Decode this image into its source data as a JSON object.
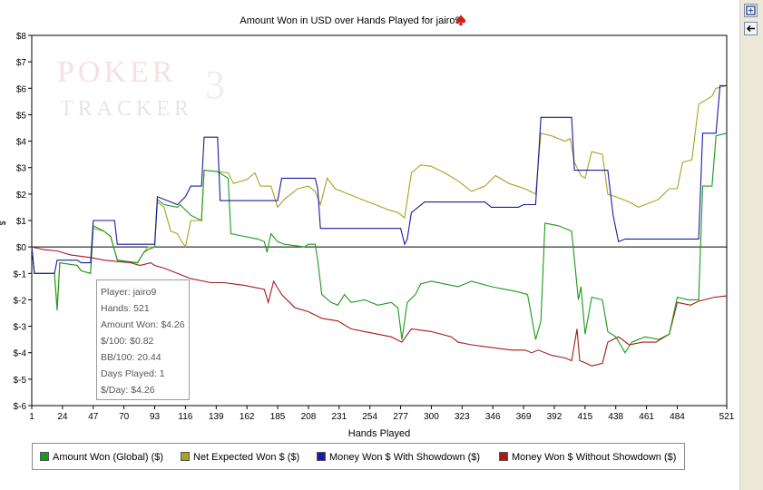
{
  "chart_data": {
    "type": "line",
    "title": "Amount Won in USD over Hands Played for jairo9",
    "xlabel": "Hands Played",
    "ylabel": "$",
    "xlim": [
      1,
      521
    ],
    "ylim": [
      -6,
      8
    ],
    "x_ticks": [
      1,
      24,
      47,
      70,
      93,
      116,
      139,
      162,
      185,
      208,
      231,
      254,
      277,
      300,
      323,
      346,
      369,
      392,
      415,
      438,
      461,
      484,
      521
    ],
    "y_ticks": [
      {
        "v": 8,
        "label": "$8"
      },
      {
        "v": 7,
        "label": "$7"
      },
      {
        "v": 6,
        "label": "$6"
      },
      {
        "v": 5,
        "label": "$5"
      },
      {
        "v": 4,
        "label": "$4"
      },
      {
        "v": 3,
        "label": "$3"
      },
      {
        "v": 2,
        "label": "$2"
      },
      {
        "v": 1,
        "label": "$1"
      },
      {
        "v": 0,
        "label": "$0"
      },
      {
        "v": -1,
        "label": "$-1"
      },
      {
        "v": -2,
        "label": "$-2"
      },
      {
        "v": -3,
        "label": "$-3"
      },
      {
        "v": -4,
        "label": "$-4"
      },
      {
        "v": -5,
        "label": "$-5"
      },
      {
        "v": -6,
        "label": "$-6"
      }
    ],
    "grid": false,
    "zero_line": true,
    "legend_position": "bottom",
    "series": [
      {
        "name": "Amount Won (Global) ($)",
        "color": "#1a9a1a",
        "points": [
          [
            1,
            0
          ],
          [
            3,
            -1
          ],
          [
            18,
            -1
          ],
          [
            20,
            -2.4
          ],
          [
            22,
            -0.6
          ],
          [
            35,
            -0.7
          ],
          [
            38,
            -0.9
          ],
          [
            45,
            -1
          ],
          [
            47,
            0.8
          ],
          [
            55,
            0.6
          ],
          [
            60,
            0.4
          ],
          [
            65,
            -0.5
          ],
          [
            80,
            -0.6
          ],
          [
            85,
            -0.2
          ],
          [
            88,
            -0.1
          ],
          [
            93,
            0
          ],
          [
            95,
            1.8
          ],
          [
            100,
            1.6
          ],
          [
            110,
            1.5
          ],
          [
            112,
            1.6
          ],
          [
            120,
            1.2
          ],
          [
            128,
            1
          ],
          [
            130,
            2.9
          ],
          [
            140,
            2.85
          ],
          [
            148,
            2.6
          ],
          [
            150,
            0.5
          ],
          [
            160,
            0.4
          ],
          [
            170,
            0.3
          ],
          [
            175,
            0.2
          ],
          [
            177,
            -0.2
          ],
          [
            180,
            0.5
          ],
          [
            185,
            0.2
          ],
          [
            190,
            0.1
          ],
          [
            205,
            0
          ],
          [
            208,
            0.1
          ],
          [
            213,
            0.1
          ],
          [
            215,
            -0.5
          ],
          [
            218,
            -1.8
          ],
          [
            225,
            -2.1
          ],
          [
            230,
            -2.2
          ],
          [
            235,
            -1.8
          ],
          [
            240,
            -2.1
          ],
          [
            250,
            -2
          ],
          [
            260,
            -2.2
          ],
          [
            270,
            -2.1
          ],
          [
            275,
            -2.3
          ],
          [
            278,
            -3.5
          ],
          [
            282,
            -2.1
          ],
          [
            288,
            -1.8
          ],
          [
            292,
            -1.4
          ],
          [
            300,
            -1.3
          ],
          [
            310,
            -1.4
          ],
          [
            320,
            -1.5
          ],
          [
            330,
            -1.3
          ],
          [
            345,
            -1.5
          ],
          [
            355,
            -1.6
          ],
          [
            365,
            -1.7
          ],
          [
            372,
            -1.8
          ],
          [
            378,
            -3.5
          ],
          [
            382,
            -2.8
          ],
          [
            385,
            0.9
          ],
          [
            395,
            0.8
          ],
          [
            405,
            0.6
          ],
          [
            410,
            -2
          ],
          [
            412,
            -1.5
          ],
          [
            415,
            -3.3
          ],
          [
            420,
            -1.9
          ],
          [
            428,
            -2
          ],
          [
            432,
            -3.2
          ],
          [
            438,
            -3.4
          ],
          [
            445,
            -4
          ],
          [
            450,
            -3.6
          ],
          [
            460,
            -3.4
          ],
          [
            470,
            -3.5
          ],
          [
            478,
            -3.3
          ],
          [
            484,
            -1.9
          ],
          [
            492,
            -2
          ],
          [
            500,
            -2
          ],
          [
            503,
            2.3
          ],
          [
            510,
            2.3
          ],
          [
            513,
            4.2
          ],
          [
            521,
            4.3
          ]
        ]
      },
      {
        "name": "Net Expected Won $ ($)",
        "color": "#a8a222",
        "points": [
          [
            1,
            0
          ],
          [
            3,
            -1
          ],
          [
            18,
            -1
          ],
          [
            20,
            -2.3
          ],
          [
            22,
            -0.6
          ],
          [
            35,
            -0.7
          ],
          [
            38,
            -0.9
          ],
          [
            45,
            -1
          ],
          [
            47,
            0.7
          ],
          [
            55,
            0.6
          ],
          [
            60,
            0.4
          ],
          [
            65,
            -0.5
          ],
          [
            80,
            -0.6
          ],
          [
            85,
            -0.2
          ],
          [
            88,
            0
          ],
          [
            93,
            0
          ],
          [
            95,
            1.7
          ],
          [
            100,
            1.5
          ],
          [
            105,
            0.6
          ],
          [
            110,
            0.5
          ],
          [
            112,
            0.3
          ],
          [
            116,
            0
          ],
          [
            120,
            1
          ],
          [
            128,
            1
          ],
          [
            130,
            2.9
          ],
          [
            140,
            2.85
          ],
          [
            148,
            2.8
          ],
          [
            152,
            2.4
          ],
          [
            162,
            2.55
          ],
          [
            168,
            2.8
          ],
          [
            172,
            2.3
          ],
          [
            180,
            2.3
          ],
          [
            185,
            1.5
          ],
          [
            190,
            1.8
          ],
          [
            200,
            2.2
          ],
          [
            208,
            2.3
          ],
          [
            213,
            2.1
          ],
          [
            217,
            1.6
          ],
          [
            222,
            2.6
          ],
          [
            228,
            2.2
          ],
          [
            238,
            2.0
          ],
          [
            248,
            1.8
          ],
          [
            258,
            1.6
          ],
          [
            268,
            1.4
          ],
          [
            275,
            1.3
          ],
          [
            280,
            1.1
          ],
          [
            285,
            2.8
          ],
          [
            292,
            3.1
          ],
          [
            300,
            3.05
          ],
          [
            310,
            2.8
          ],
          [
            320,
            2.5
          ],
          [
            330,
            2.1
          ],
          [
            340,
            2.3
          ],
          [
            348,
            2.7
          ],
          [
            358,
            2.4
          ],
          [
            370,
            2.2
          ],
          [
            378,
            2.0
          ],
          [
            382,
            4.3
          ],
          [
            390,
            4.2
          ],
          [
            400,
            4.0
          ],
          [
            404,
            4.1
          ],
          [
            407,
            3.2
          ],
          [
            410,
            2.9
          ],
          [
            412,
            2.7
          ],
          [
            415,
            2.6
          ],
          [
            420,
            3.6
          ],
          [
            428,
            3.5
          ],
          [
            432,
            2.0
          ],
          [
            438,
            1.9
          ],
          [
            448,
            1.7
          ],
          [
            455,
            1.5
          ],
          [
            460,
            1.6
          ],
          [
            470,
            1.8
          ],
          [
            478,
            2.2
          ],
          [
            484,
            2.2
          ],
          [
            488,
            3.2
          ],
          [
            495,
            3.3
          ],
          [
            500,
            5.4
          ],
          [
            510,
            5.7
          ],
          [
            513,
            6.0
          ],
          [
            521,
            6.1
          ]
        ]
      },
      {
        "name": "Money Won $ With Showdown ($)",
        "color": "#1a1aa8",
        "points": [
          [
            1,
            0
          ],
          [
            3,
            -1
          ],
          [
            18,
            -1
          ],
          [
            20,
            -0.5
          ],
          [
            35,
            -0.5
          ],
          [
            38,
            -0.6
          ],
          [
            45,
            -0.6
          ],
          [
            47,
            1.0
          ],
          [
            63,
            1.0
          ],
          [
            65,
            0.1
          ],
          [
            88,
            0.1
          ],
          [
            93,
            0.1
          ],
          [
            95,
            1.9
          ],
          [
            110,
            1.6
          ],
          [
            116,
            1.9
          ],
          [
            120,
            2.3
          ],
          [
            128,
            2.3
          ],
          [
            130,
            4.15
          ],
          [
            140,
            4.15
          ],
          [
            142,
            1.75
          ],
          [
            185,
            1.75
          ],
          [
            188,
            2.6
          ],
          [
            213,
            2.6
          ],
          [
            215,
            2.2
          ],
          [
            217,
            0.7
          ],
          [
            277,
            0.7
          ],
          [
            280,
            0.1
          ],
          [
            282,
            0.3
          ],
          [
            285,
            1.3
          ],
          [
            295,
            1.7
          ],
          [
            340,
            1.7
          ],
          [
            345,
            1.5
          ],
          [
            365,
            1.5
          ],
          [
            369,
            1.6
          ],
          [
            378,
            1.6
          ],
          [
            382,
            4.9
          ],
          [
            392,
            4.9
          ],
          [
            400,
            4.9
          ],
          [
            405,
            4.9
          ],
          [
            407,
            2.9
          ],
          [
            432,
            2.9
          ],
          [
            436,
            1.2
          ],
          [
            440,
            0.2
          ],
          [
            445,
            0.3
          ],
          [
            500,
            0.3
          ],
          [
            503,
            4.3
          ],
          [
            513,
            4.3
          ],
          [
            516,
            6.1
          ],
          [
            521,
            6.1
          ]
        ]
      },
      {
        "name": "Money Won $ Without Showdown ($)",
        "color": "#a81a1a",
        "points": [
          [
            1,
            0
          ],
          [
            10,
            -0.1
          ],
          [
            20,
            -0.15
          ],
          [
            30,
            -0.3
          ],
          [
            45,
            -0.4
          ],
          [
            55,
            -0.5
          ],
          [
            65,
            -0.55
          ],
          [
            75,
            -0.6
          ],
          [
            82,
            -0.7
          ],
          [
            90,
            -0.6
          ],
          [
            93,
            -0.7
          ],
          [
            100,
            -0.8
          ],
          [
            110,
            -1.0
          ],
          [
            120,
            -1.2
          ],
          [
            135,
            -1.35
          ],
          [
            145,
            -1.35
          ],
          [
            160,
            -1.45
          ],
          [
            175,
            -1.6
          ],
          [
            178,
            -2.1
          ],
          [
            182,
            -1.3
          ],
          [
            188,
            -1.8
          ],
          [
            198,
            -2.3
          ],
          [
            208,
            -2.45
          ],
          [
            218,
            -2.7
          ],
          [
            230,
            -2.8
          ],
          [
            240,
            -3.1
          ],
          [
            250,
            -3.2
          ],
          [
            260,
            -3.3
          ],
          [
            270,
            -3.4
          ],
          [
            278,
            -3.6
          ],
          [
            285,
            -3.1
          ],
          [
            300,
            -3.2
          ],
          [
            315,
            -3.4
          ],
          [
            320,
            -3.6
          ],
          [
            330,
            -3.7
          ],
          [
            345,
            -3.8
          ],
          [
            360,
            -3.9
          ],
          [
            370,
            -3.9
          ],
          [
            375,
            -4.0
          ],
          [
            380,
            -3.9
          ],
          [
            390,
            -4.1
          ],
          [
            400,
            -4.2
          ],
          [
            405,
            -4.3
          ],
          [
            409,
            -3.1
          ],
          [
            411,
            -4.3
          ],
          [
            416,
            -4.4
          ],
          [
            420,
            -4.5
          ],
          [
            428,
            -4.4
          ],
          [
            432,
            -3.6
          ],
          [
            440,
            -3.4
          ],
          [
            448,
            -3.7
          ],
          [
            458,
            -3.6
          ],
          [
            468,
            -3.6
          ],
          [
            478,
            -3.3
          ],
          [
            484,
            -2.1
          ],
          [
            494,
            -2.2
          ],
          [
            500,
            -2.05
          ],
          [
            512,
            -1.9
          ],
          [
            521,
            -1.85
          ]
        ]
      }
    ]
  },
  "tooltip": {
    "lines": [
      "Player: jairo9",
      "Hands: 521",
      "Amount Won: $4.26",
      "$/100: $0.82",
      "BB/100: 20.44",
      "Days Played: 1",
      "$/Day: $4.26"
    ]
  },
  "watermark": {
    "brand": "POKER",
    "sub": "TRACKER",
    "num": "3"
  },
  "icons": {
    "title_icon": "spade-icon",
    "side_top": "expand-icon",
    "side_second": "back-arrow-icon"
  }
}
